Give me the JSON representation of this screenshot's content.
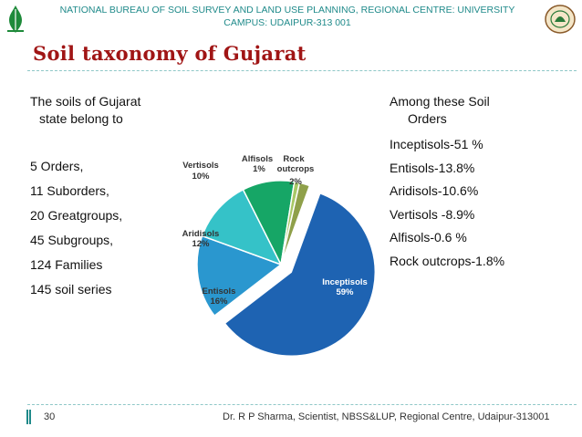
{
  "header": {
    "line1": "NATIONAL BUREAU OF SOIL SURVEY AND LAND USE PLANNING, REGIONAL CENTRE: UNIVERSITY",
    "line2": "CAMPUS: UDAIPUR-313 001"
  },
  "title": "Soil taxonomy of Gujarat",
  "left": {
    "intro_line1": "The soils of Gujarat",
    "intro_line2": "state belong to",
    "facts": [
      "5 Orders,",
      "11 Suborders,",
      "20 Greatgroups,",
      "45 Subgroups,",
      "124 Families",
      "145 soil series"
    ]
  },
  "right": {
    "heading_line1": "Among these Soil",
    "heading_line2": "Orders",
    "items": [
      "Inceptisols-51 %",
      "Entisols-13.8%",
      "Aridisols-10.6%",
      "Vertisols -8.9%",
      "Alfisols-0.6 %",
      "Rock outcrops-1.8%"
    ]
  },
  "chart_data": {
    "type": "pie",
    "title": "",
    "slices": [
      {
        "label": "Inceptisols",
        "value": 59,
        "value_label": "59%",
        "color": "#1e63b2"
      },
      {
        "label": "Entisols",
        "value": 16,
        "value_label": "16%",
        "color": "#2a97cf"
      },
      {
        "label": "Aridisols",
        "value": 12,
        "value_label": "12%",
        "color": "#35c2c8"
      },
      {
        "label": "Vertisols",
        "value": 10,
        "value_label": "10%",
        "color": "#16a666"
      },
      {
        "label": "Alfisols",
        "value": 1,
        "value_label": "1%",
        "color": "#a8c866"
      },
      {
        "label": "Rock outcrops",
        "value": 2,
        "value_label": "2%",
        "color": "#8fa04a"
      }
    ],
    "exploded": "Inceptisols",
    "legend": "none"
  },
  "footer": {
    "page": "30",
    "text": "Dr. R P Sharma, Scientist, NBSS&LUP, Regional Centre, Udaipur-313001"
  }
}
